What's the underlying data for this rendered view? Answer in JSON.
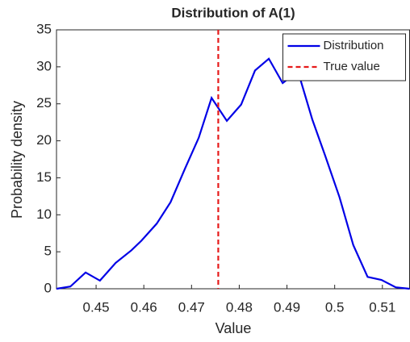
{
  "chart_data": {
    "type": "line",
    "title": "Distribution of A(1)",
    "x_label": "Value",
    "y_label": "Probability density",
    "x": [
      0.4417,
      0.4446,
      0.4478,
      0.4508,
      0.4541,
      0.4574,
      0.4595,
      0.4627,
      0.4656,
      0.4686,
      0.4715,
      0.4742,
      0.4774,
      0.4804,
      0.4833,
      0.4862,
      0.4891,
      0.4923,
      0.4953,
      0.498,
      0.501,
      0.5039,
      0.5069,
      0.5098,
      0.5128,
      0.5157
    ],
    "series": [
      {
        "name": "Distribution",
        "color": "#0000e6",
        "values": [
          0,
          0.3,
          2.2,
          1.1,
          3.5,
          5.2,
          6.5,
          8.8,
          11.7,
          16.2,
          20.4,
          25.8,
          22.7,
          24.9,
          29.5,
          31.1,
          27.8,
          29.4,
          22.9,
          18.0,
          12.4,
          5.9,
          1.6,
          1.2,
          0.2,
          0
        ]
      }
    ],
    "reference_line": {
      "name": "True value",
      "x": 0.4756,
      "color": "#e61a1a"
    },
    "xlim": [
      0.4417,
      0.5157
    ],
    "ylim": [
      0,
      35
    ],
    "xticks": [
      0.45,
      0.46,
      0.47,
      0.48,
      0.49,
      0.5,
      0.51
    ],
    "yticks": [
      0,
      5,
      10,
      15,
      20,
      25,
      30,
      35
    ],
    "legend_position": "upper right"
  }
}
